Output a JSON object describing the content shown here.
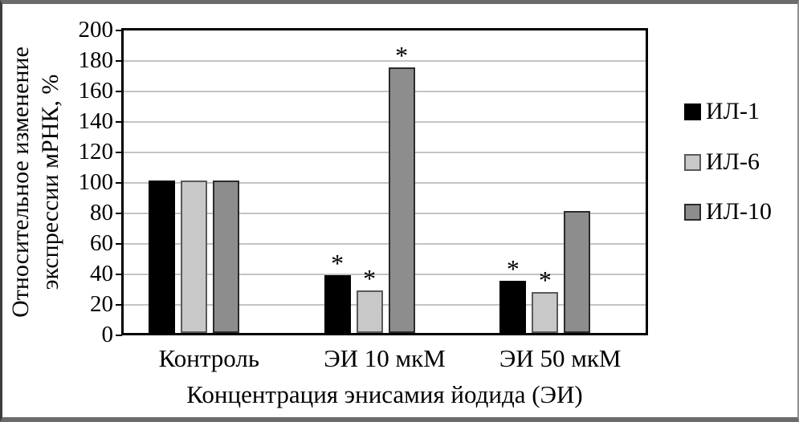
{
  "frame": {
    "border_color": "#6b6b6b",
    "background": "#ffffff"
  },
  "chart_data": {
    "type": "bar",
    "title": "",
    "xlabel": "Концентрация энисамия йодида (ЭИ)",
    "ylabel": "Относительное изменение экспрессии мРНК, %",
    "ylabel_lines": [
      "Относительное изменение",
      "экспрессии мРНК, %"
    ],
    "ylim": [
      0,
      200
    ],
    "ytick_step": 20,
    "yticks": [
      0,
      20,
      40,
      60,
      80,
      100,
      120,
      140,
      160,
      180,
      200
    ],
    "grid": "horizontal",
    "gridline_color": "#c3c3c3",
    "legend_position": "right",
    "significance_marker": "*",
    "categories": [
      "Контроль",
      "ЭИ 10 мкМ",
      "ЭИ 50 мкМ"
    ],
    "series": [
      {
        "name": "ИЛ-1",
        "color": "#000000",
        "border_color": "#000000",
        "values": [
          100,
          38,
          34
        ],
        "significance": [
          false,
          true,
          true
        ]
      },
      {
        "name": "ИЛ-6",
        "color": "#c8c8c8",
        "border_color": "#595959",
        "values": [
          100,
          28,
          27
        ],
        "significance": [
          false,
          true,
          true
        ]
      },
      {
        "name": "ИЛ-10",
        "color": "#8d8d8d",
        "border_color": "#2b2b2b",
        "values": [
          100,
          174,
          80
        ],
        "significance": [
          false,
          true,
          false
        ]
      }
    ]
  }
}
